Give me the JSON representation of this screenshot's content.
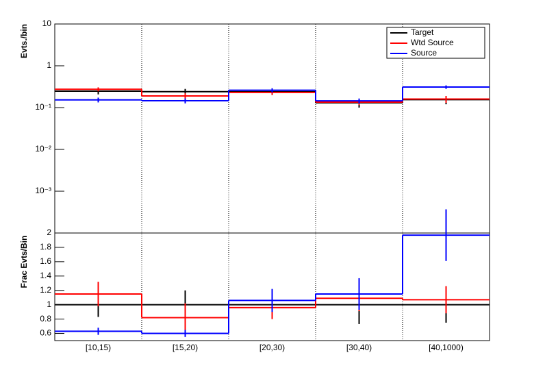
{
  "chart_data": [
    {
      "type": "step",
      "y_label": "Evts./bin",
      "log_y": true,
      "ylim": [
        0.0001,
        10
      ],
      "yticks": [
        {
          "value": 0.001,
          "label": "10⁻³"
        },
        {
          "value": 0.01,
          "label": "10⁻²"
        },
        {
          "value": 0.1,
          "label": "10⁻¹"
        },
        1,
        10
      ],
      "legend": "top-right",
      "series": [
        {
          "name": "Target",
          "color": "#000000",
          "values": [
            0.247,
            0.24,
            0.24,
            0.13,
            0.155
          ],
          "errors": [
            0.04,
            0.04,
            0.04,
            0.03,
            0.035
          ]
        },
        {
          "name": "Wtd Source",
          "color": "#ff0000",
          "values": [
            0.275,
            0.19,
            0.23,
            0.135,
            0.16
          ],
          "errors": [
            0.03,
            0.03,
            0.03,
            0.02,
            0.03
          ]
        },
        {
          "name": "Source",
          "color": "#0000ff",
          "values": [
            0.153,
            0.146,
            0.26,
            0.145,
            0.31
          ],
          "errors": [
            0.02,
            0.02,
            0.03,
            0.02,
            0.03
          ]
        }
      ]
    },
    {
      "type": "step",
      "y_label": "Frac Evts/Bin",
      "log_y": false,
      "categories": [
        "[10,15)",
        "[15,20)",
        "[20,30)",
        "[30,40)",
        "[40,1000)"
      ],
      "ylim": [
        0.5,
        2
      ],
      "yticks": [
        0.6,
        0.8,
        1,
        1.2,
        1.4,
        1.6,
        1.8,
        2
      ],
      "series": [
        {
          "name": "Target",
          "color": "#000000",
          "values": [
            1,
            1,
            1,
            1,
            1
          ],
          "errors": [
            0.17,
            0.2,
            0.13,
            0.27,
            0.25
          ]
        },
        {
          "name": "Wtd Source",
          "color": "#ff0000",
          "values": [
            1.15,
            0.82,
            0.96,
            1.09,
            1.07
          ],
          "errors": [
            0.17,
            0.2,
            0.16,
            0.18,
            0.19
          ]
        },
        {
          "name": "Source",
          "color": "#0000ff",
          "values": [
            0.63,
            0.6,
            1.06,
            1.15,
            1.97
          ],
          "errors": [
            0.05,
            0.05,
            0.16,
            0.22,
            0.36
          ]
        }
      ]
    }
  ]
}
